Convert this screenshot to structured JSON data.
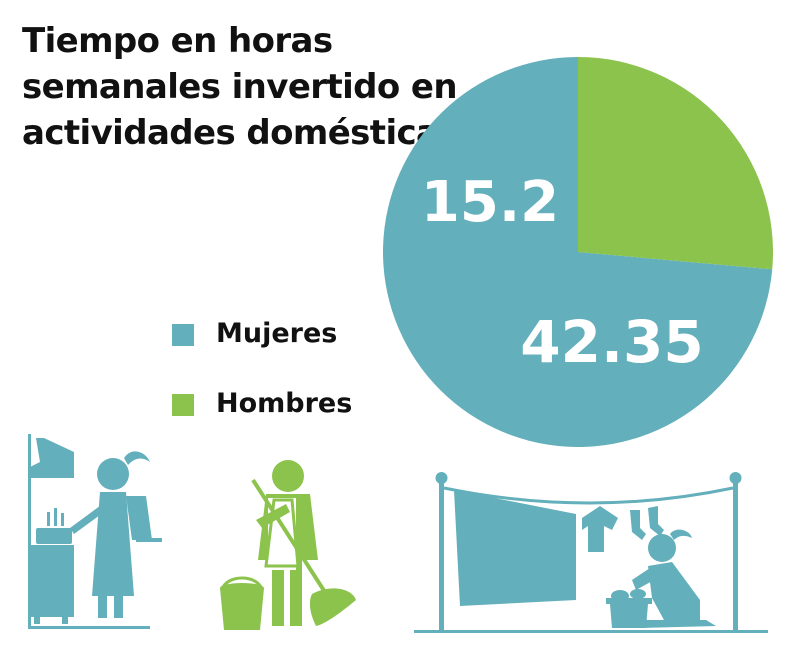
{
  "colors": {
    "teal": "#63afbb",
    "green": "#8cc34c",
    "text": "#111111"
  },
  "chart_data": {
    "type": "pie",
    "title": "Tiempo en horas semanales invertido en actividades domésticas",
    "slices": [
      {
        "label": "Mujeres",
        "value": 42.35,
        "display": "42.35",
        "color": "#63afbb"
      },
      {
        "label": "Hombres",
        "value": 15.2,
        "display": "15.2",
        "color": "#8cc34c"
      }
    ],
    "legend_position": "left"
  },
  "illustrations": [
    {
      "icon": "woman-cooking-icon",
      "color": "#63afbb"
    },
    {
      "icon": "person-sweeping-icon",
      "color": "#8cc34c"
    },
    {
      "icon": "woman-laundry-icon",
      "color": "#63afbb"
    }
  ]
}
